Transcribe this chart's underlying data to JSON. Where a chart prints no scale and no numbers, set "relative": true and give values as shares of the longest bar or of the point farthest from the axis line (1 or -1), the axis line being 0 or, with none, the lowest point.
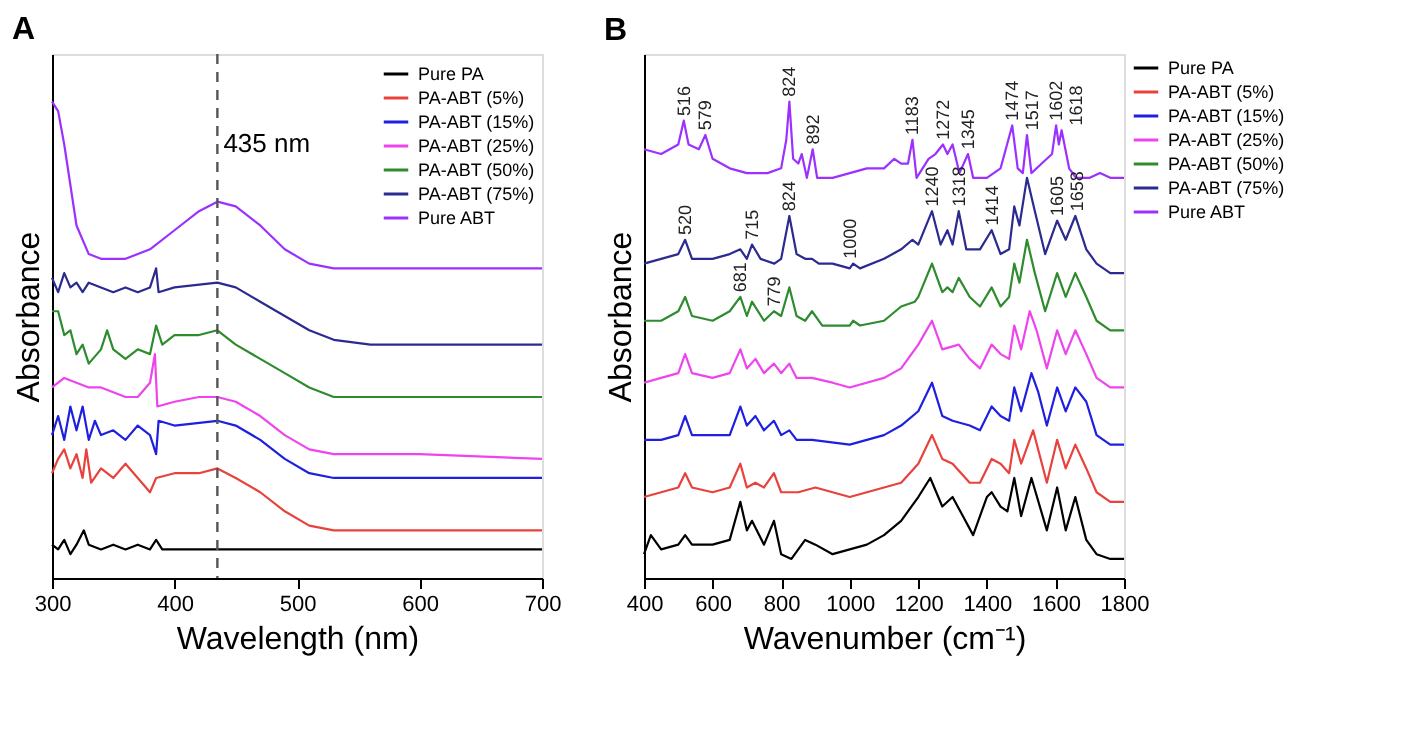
{
  "chart_data": [
    {
      "type": "line",
      "title": "A",
      "xlabel": "Wavelength (nm)",
      "ylabel": "Absorbance",
      "relative": true,
      "xlim": [
        300,
        700
      ],
      "xticks": [
        300,
        400,
        500,
        600,
        700
      ],
      "grid": false,
      "legend": "top right",
      "line_style": "solid",
      "marker": "none",
      "ref_lines": [
        {
          "axis": "x",
          "value": 435,
          "label": "435 nm",
          "color": "#555555",
          "line_style": "dashed"
        }
      ],
      "series": [
        {
          "name": "Pure PA",
          "color": "#000000",
          "x": [
            300,
            305,
            310,
            315,
            320,
            326,
            330,
            340,
            350,
            360,
            370,
            380,
            385,
            390,
            420,
            700
          ],
          "values": [
            0.07,
            0.06,
            0.08,
            0.05,
            0.07,
            0.1,
            0.07,
            0.06,
            0.07,
            0.06,
            0.07,
            0.06,
            0.08,
            0.06,
            0.06,
            0.06
          ]
        },
        {
          "name": "PA-ABT (5%)",
          "color": "#e8423c",
          "x": [
            300,
            305,
            310,
            315,
            320,
            325,
            328,
            332,
            340,
            350,
            360,
            370,
            380,
            385,
            400,
            420,
            435,
            450,
            470,
            490,
            510,
            530,
            600,
            700
          ],
          "values": [
            0.22,
            0.25,
            0.27,
            0.23,
            0.26,
            0.21,
            0.27,
            0.2,
            0.23,
            0.21,
            0.24,
            0.21,
            0.18,
            0.21,
            0.22,
            0.22,
            0.23,
            0.21,
            0.18,
            0.14,
            0.11,
            0.1,
            0.1,
            0.1
          ]
        },
        {
          "name": "PA-ABT (15%)",
          "color": "#1f1fe0",
          "x": [
            300,
            305,
            310,
            315,
            320,
            325,
            330,
            335,
            340,
            350,
            360,
            370,
            380,
            385,
            387,
            400,
            435,
            450,
            470,
            490,
            510,
            530,
            600,
            700
          ],
          "values": [
            0.3,
            0.34,
            0.29,
            0.36,
            0.31,
            0.36,
            0.29,
            0.33,
            0.3,
            0.31,
            0.29,
            0.32,
            0.3,
            0.26,
            0.33,
            0.32,
            0.33,
            0.32,
            0.29,
            0.25,
            0.22,
            0.21,
            0.21,
            0.21
          ]
        },
        {
          "name": "PA-ABT (25%)",
          "color": "#ee44ee",
          "x": [
            300,
            310,
            320,
            330,
            340,
            350,
            360,
            370,
            380,
            384,
            386,
            400,
            420,
            435,
            450,
            470,
            490,
            510,
            530,
            600,
            700
          ],
          "values": [
            0.4,
            0.42,
            0.41,
            0.4,
            0.4,
            0.39,
            0.38,
            0.38,
            0.41,
            0.47,
            0.36,
            0.37,
            0.38,
            0.38,
            0.37,
            0.34,
            0.3,
            0.27,
            0.26,
            0.26,
            0.25
          ]
        },
        {
          "name": "PA-ABT (50%)",
          "color": "#2e8b2e",
          "x": [
            300,
            305,
            310,
            315,
            320,
            325,
            330,
            340,
            345,
            350,
            360,
            370,
            380,
            385,
            390,
            400,
            420,
            435,
            450,
            470,
            490,
            510,
            530,
            560,
            700
          ],
          "values": [
            0.56,
            0.56,
            0.51,
            0.52,
            0.47,
            0.49,
            0.45,
            0.48,
            0.52,
            0.48,
            0.46,
            0.48,
            0.47,
            0.53,
            0.49,
            0.51,
            0.51,
            0.52,
            0.49,
            0.46,
            0.43,
            0.4,
            0.38,
            0.38,
            0.38
          ]
        },
        {
          "name": "PA-ABT (75%)",
          "color": "#2b2b8f",
          "x": [
            300,
            305,
            310,
            315,
            320,
            325,
            330,
            340,
            350,
            360,
            370,
            380,
            385,
            387,
            400,
            435,
            450,
            470,
            490,
            510,
            530,
            560,
            700
          ],
          "values": [
            0.63,
            0.6,
            0.64,
            0.61,
            0.62,
            0.6,
            0.62,
            0.61,
            0.6,
            0.61,
            0.6,
            0.61,
            0.65,
            0.6,
            0.61,
            0.62,
            0.61,
            0.58,
            0.55,
            0.52,
            0.5,
            0.49,
            0.49
          ]
        },
        {
          "name": "Pure ABT",
          "color": "#9b30ff",
          "x": [
            300,
            305,
            310,
            320,
            330,
            340,
            360,
            380,
            400,
            420,
            435,
            450,
            470,
            490,
            510,
            530,
            600,
            700
          ],
          "values": [
            1.0,
            0.98,
            0.91,
            0.74,
            0.68,
            0.67,
            0.67,
            0.69,
            0.73,
            0.77,
            0.79,
            0.78,
            0.74,
            0.69,
            0.66,
            0.65,
            0.65,
            0.65
          ]
        }
      ]
    },
    {
      "type": "line",
      "title": "B",
      "xlabel": "Wavenumber (cm⁻¹)",
      "ylabel": "Absorbance",
      "relative": true,
      "xlim": [
        400,
        1800
      ],
      "xticks": [
        400,
        600,
        800,
        1000,
        1200,
        1400,
        1600,
        1800
      ],
      "grid": false,
      "legend": "right",
      "line_style": "solid",
      "marker": "none",
      "annotations": [
        {
          "text": "516",
          "x": 516,
          "y": 0.97
        },
        {
          "text": "579",
          "x": 579,
          "y": 0.94
        },
        {
          "text": "824",
          "x": 824,
          "y": 1.01
        },
        {
          "text": "892",
          "x": 892,
          "y": 0.91
        },
        {
          "text": "1183",
          "x": 1183,
          "y": 0.93
        },
        {
          "text": "1272",
          "x": 1272,
          "y": 0.92
        },
        {
          "text": "1345",
          "x": 1345,
          "y": 0.9
        },
        {
          "text": "1474",
          "x": 1474,
          "y": 0.96
        },
        {
          "text": "1517",
          "x": 1517,
          "y": 0.94
        },
        {
          "text": "1602",
          "x": 1602,
          "y": 0.96
        },
        {
          "text": "1618",
          "x": 1618,
          "y": 0.95
        },
        {
          "text": "520",
          "x": 520,
          "y": 0.72
        },
        {
          "text": "715",
          "x": 715,
          "y": 0.71
        },
        {
          "text": "824",
          "x": 824,
          "y": 0.77
        },
        {
          "text": "1000",
          "x": 1000,
          "y": 0.67
        },
        {
          "text": "1240",
          "x": 1240,
          "y": 0.78
        },
        {
          "text": "1318",
          "x": 1318,
          "y": 0.78
        },
        {
          "text": "1414",
          "x": 1414,
          "y": 0.74
        },
        {
          "text": "1605",
          "x": 1605,
          "y": 0.76
        },
        {
          "text": "1658",
          "x": 1658,
          "y": 0.77
        },
        {
          "text": "681",
          "x": 681,
          "y": 0.6
        },
        {
          "text": "779",
          "x": 779,
          "y": 0.57
        }
      ],
      "series": [
        {
          "name": "Pure PA",
          "color": "#000000",
          "x": [
            400,
            420,
            450,
            500,
            520,
            540,
            600,
            650,
            681,
            700,
            715,
            750,
            779,
            800,
            830,
            870,
            900,
            950,
            1000,
            1050,
            1100,
            1150,
            1200,
            1235,
            1270,
            1300,
            1330,
            1360,
            1400,
            1414,
            1440,
            1460,
            1480,
            1500,
            1530,
            1575,
            1605,
            1630,
            1658,
            1690,
            1720,
            1760,
            1800
          ],
          "values": [
            0.05,
            0.09,
            0.06,
            0.07,
            0.09,
            0.07,
            0.07,
            0.08,
            0.16,
            0.1,
            0.12,
            0.07,
            0.12,
            0.05,
            0.04,
            0.08,
            0.07,
            0.05,
            0.06,
            0.07,
            0.09,
            0.12,
            0.17,
            0.21,
            0.15,
            0.17,
            0.13,
            0.09,
            0.17,
            0.18,
            0.15,
            0.14,
            0.21,
            0.13,
            0.21,
            0.1,
            0.19,
            0.1,
            0.17,
            0.08,
            0.05,
            0.04,
            0.04
          ]
        },
        {
          "name": "PA-ABT (5%)",
          "color": "#e8423c",
          "x": [
            400,
            450,
            500,
            520,
            540,
            600,
            650,
            681,
            700,
            725,
            750,
            779,
            800,
            850,
            900,
            1000,
            1100,
            1150,
            1200,
            1240,
            1270,
            1300,
            1350,
            1380,
            1414,
            1440,
            1465,
            1480,
            1500,
            1535,
            1575,
            1605,
            1630,
            1658,
            1690,
            1720,
            1760,
            1800
          ],
          "values": [
            0.17,
            0.18,
            0.19,
            0.22,
            0.19,
            0.18,
            0.19,
            0.24,
            0.19,
            0.2,
            0.19,
            0.22,
            0.18,
            0.18,
            0.19,
            0.17,
            0.19,
            0.2,
            0.24,
            0.3,
            0.25,
            0.24,
            0.2,
            0.2,
            0.25,
            0.24,
            0.22,
            0.29,
            0.24,
            0.31,
            0.2,
            0.29,
            0.23,
            0.28,
            0.23,
            0.18,
            0.16,
            0.16
          ]
        },
        {
          "name": "PA-ABT (15%)",
          "color": "#1f1fe0",
          "x": [
            400,
            450,
            500,
            520,
            540,
            600,
            650,
            681,
            700,
            725,
            750,
            779,
            800,
            824,
            845,
            890,
            1000,
            1100,
            1150,
            1200,
            1240,
            1270,
            1300,
            1350,
            1380,
            1414,
            1440,
            1465,
            1480,
            1500,
            1530,
            1550,
            1575,
            1605,
            1630,
            1658,
            1690,
            1720,
            1760,
            1800
          ],
          "values": [
            0.29,
            0.29,
            0.3,
            0.34,
            0.3,
            0.3,
            0.3,
            0.36,
            0.32,
            0.34,
            0.31,
            0.33,
            0.3,
            0.31,
            0.29,
            0.29,
            0.28,
            0.3,
            0.32,
            0.35,
            0.41,
            0.34,
            0.33,
            0.32,
            0.31,
            0.36,
            0.34,
            0.33,
            0.4,
            0.35,
            0.43,
            0.39,
            0.32,
            0.4,
            0.35,
            0.4,
            0.37,
            0.3,
            0.28,
            0.28
          ]
        },
        {
          "name": "PA-ABT (25%)",
          "color": "#ee44ee",
          "x": [
            400,
            450,
            500,
            520,
            540,
            600,
            650,
            681,
            700,
            725,
            750,
            779,
            800,
            824,
            845,
            890,
            950,
            1000,
            1100,
            1150,
            1200,
            1240,
            1270,
            1318,
            1350,
            1380,
            1414,
            1440,
            1465,
            1480,
            1500,
            1525,
            1545,
            1575,
            1605,
            1630,
            1658,
            1690,
            1720,
            1760,
            1800
          ],
          "values": [
            0.41,
            0.42,
            0.43,
            0.47,
            0.43,
            0.42,
            0.43,
            0.48,
            0.44,
            0.46,
            0.43,
            0.45,
            0.43,
            0.45,
            0.42,
            0.42,
            0.41,
            0.4,
            0.42,
            0.44,
            0.49,
            0.54,
            0.48,
            0.49,
            0.46,
            0.44,
            0.49,
            0.47,
            0.46,
            0.53,
            0.48,
            0.56,
            0.52,
            0.44,
            0.52,
            0.47,
            0.52,
            0.47,
            0.42,
            0.4,
            0.4
          ]
        },
        {
          "name": "PA-ABT (50%)",
          "color": "#2e8b2e",
          "x": [
            400,
            450,
            500,
            520,
            540,
            600,
            650,
            681,
            700,
            715,
            750,
            779,
            800,
            824,
            845,
            870,
            890,
            920,
            1000,
            1010,
            1030,
            1100,
            1150,
            1190,
            1200,
            1240,
            1270,
            1285,
            1300,
            1318,
            1350,
            1380,
            1414,
            1440,
            1465,
            1480,
            1495,
            1517,
            1540,
            1570,
            1605,
            1630,
            1658,
            1690,
            1720,
            1760,
            1800
          ],
          "values": [
            0.54,
            0.54,
            0.56,
            0.59,
            0.55,
            0.54,
            0.56,
            0.59,
            0.55,
            0.58,
            0.54,
            0.56,
            0.55,
            0.61,
            0.55,
            0.54,
            0.56,
            0.53,
            0.53,
            0.54,
            0.53,
            0.54,
            0.57,
            0.58,
            0.59,
            0.66,
            0.6,
            0.61,
            0.6,
            0.63,
            0.59,
            0.57,
            0.61,
            0.57,
            0.59,
            0.66,
            0.62,
            0.71,
            0.64,
            0.56,
            0.64,
            0.59,
            0.64,
            0.59,
            0.54,
            0.52,
            0.52
          ]
        },
        {
          "name": "PA-ABT (75%)",
          "color": "#2b2b8f",
          "x": [
            400,
            450,
            500,
            520,
            540,
            600,
            650,
            681,
            700,
            715,
            740,
            780,
            800,
            824,
            845,
            870,
            890,
            910,
            950,
            1000,
            1010,
            1030,
            1100,
            1150,
            1183,
            1200,
            1240,
            1265,
            1285,
            1300,
            1318,
            1340,
            1380,
            1414,
            1440,
            1465,
            1480,
            1495,
            1517,
            1540,
            1570,
            1605,
            1630,
            1658,
            1690,
            1720,
            1760,
            1800
          ],
          "values": [
            0.66,
            0.67,
            0.68,
            0.71,
            0.67,
            0.67,
            0.68,
            0.69,
            0.67,
            0.7,
            0.67,
            0.66,
            0.67,
            0.76,
            0.68,
            0.67,
            0.67,
            0.66,
            0.66,
            0.65,
            0.66,
            0.65,
            0.67,
            0.69,
            0.71,
            0.7,
            0.77,
            0.7,
            0.73,
            0.7,
            0.77,
            0.69,
            0.69,
            0.73,
            0.68,
            0.69,
            0.78,
            0.74,
            0.84,
            0.77,
            0.68,
            0.75,
            0.71,
            0.76,
            0.69,
            0.66,
            0.64,
            0.64
          ]
        },
        {
          "name": "Pure ABT",
          "color": "#9b30ff",
          "x": [
            400,
            450,
            500,
            516,
            530,
            560,
            579,
            600,
            650,
            700,
            760,
            800,
            815,
            824,
            835,
            850,
            860,
            875,
            892,
            905,
            950,
            1000,
            1050,
            1100,
            1130,
            1150,
            1170,
            1183,
            1195,
            1230,
            1250,
            1272,
            1285,
            1300,
            1320,
            1345,
            1360,
            1400,
            1440,
            1474,
            1490,
            1505,
            1517,
            1530,
            1560,
            1590,
            1602,
            1610,
            1618,
            1640,
            1660,
            1700,
            1730,
            1760,
            1800
          ],
          "values": [
            0.9,
            0.89,
            0.91,
            0.96,
            0.91,
            0.9,
            0.93,
            0.88,
            0.86,
            0.85,
            0.85,
            0.86,
            0.92,
            1.0,
            0.88,
            0.87,
            0.89,
            0.84,
            0.9,
            0.84,
            0.84,
            0.85,
            0.86,
            0.86,
            0.88,
            0.87,
            0.87,
            0.92,
            0.84,
            0.88,
            0.89,
            0.91,
            0.89,
            0.91,
            0.85,
            0.89,
            0.84,
            0.84,
            0.86,
            0.95,
            0.86,
            0.85,
            0.93,
            0.85,
            0.87,
            0.89,
            0.95,
            0.91,
            0.94,
            0.86,
            0.84,
            0.84,
            0.85,
            0.84,
            0.84
          ]
        }
      ]
    }
  ]
}
